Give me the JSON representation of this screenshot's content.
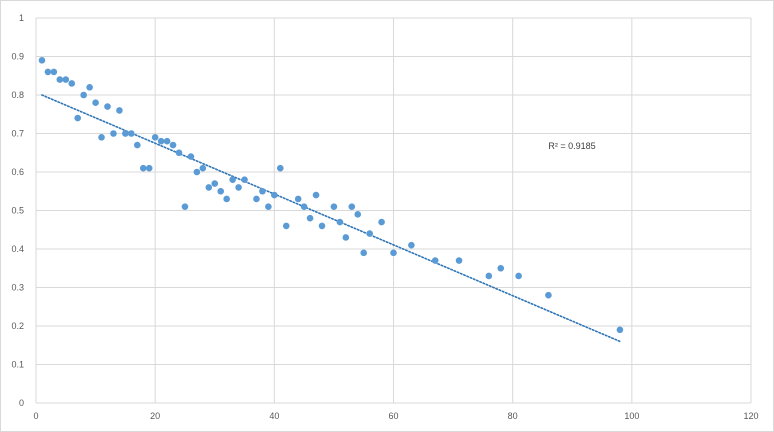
{
  "chart_data": {
    "type": "scatter",
    "title": "",
    "xlabel": "",
    "ylabel": "",
    "xlim": [
      0,
      120
    ],
    "ylim": [
      0,
      1
    ],
    "x_ticks": [
      0,
      20,
      40,
      60,
      80,
      100,
      120
    ],
    "y_ticks": [
      0,
      0.1,
      0.2,
      0.3,
      0.4,
      0.5,
      0.6,
      0.7,
      0.8,
      0.9,
      1
    ],
    "grid": true,
    "legend": "none",
    "series": [
      {
        "color": "#5b9bd5",
        "points": [
          [
            1,
            0.89
          ],
          [
            2,
            0.86
          ],
          [
            3,
            0.86
          ],
          [
            4,
            0.84
          ],
          [
            5,
            0.84
          ],
          [
            6,
            0.83
          ],
          [
            7,
            0.74
          ],
          [
            8,
            0.8
          ],
          [
            9,
            0.82
          ],
          [
            10,
            0.78
          ],
          [
            11,
            0.69
          ],
          [
            12,
            0.77
          ],
          [
            13,
            0.7
          ],
          [
            14,
            0.76
          ],
          [
            15,
            0.7
          ],
          [
            16,
            0.7
          ],
          [
            17,
            0.67
          ],
          [
            18,
            0.61
          ],
          [
            19,
            0.61
          ],
          [
            20,
            0.69
          ],
          [
            21,
            0.68
          ],
          [
            22,
            0.68
          ],
          [
            23,
            0.67
          ],
          [
            24,
            0.65
          ],
          [
            25,
            0.51
          ],
          [
            26,
            0.64
          ],
          [
            27,
            0.6
          ],
          [
            28,
            0.61
          ],
          [
            29,
            0.56
          ],
          [
            30,
            0.57
          ],
          [
            31,
            0.55
          ],
          [
            32,
            0.53
          ],
          [
            33,
            0.58
          ],
          [
            34,
            0.56
          ],
          [
            35,
            0.58
          ],
          [
            37,
            0.53
          ],
          [
            38,
            0.55
          ],
          [
            39,
            0.51
          ],
          [
            40,
            0.54
          ],
          [
            41,
            0.61
          ],
          [
            42,
            0.46
          ],
          [
            44,
            0.53
          ],
          [
            45,
            0.51
          ],
          [
            46,
            0.48
          ],
          [
            47,
            0.54
          ],
          [
            48,
            0.46
          ],
          [
            50,
            0.51
          ],
          [
            51,
            0.47
          ],
          [
            52,
            0.43
          ],
          [
            53,
            0.51
          ],
          [
            54,
            0.49
          ],
          [
            55,
            0.39
          ],
          [
            56,
            0.44
          ],
          [
            58,
            0.47
          ],
          [
            60,
            0.39
          ],
          [
            63,
            0.41
          ],
          [
            67,
            0.37
          ],
          [
            71,
            0.37
          ],
          [
            76,
            0.33
          ],
          [
            78,
            0.35
          ],
          [
            81,
            0.33
          ],
          [
            86,
            0.28
          ],
          [
            98,
            0.19
          ]
        ]
      }
    ],
    "trendline": {
      "type": "linear",
      "style": "dotted",
      "color": "#2e75b6",
      "x_start": 1,
      "x_end": 98,
      "y_start": 0.8,
      "y_end": 0.16
    },
    "annotations": [
      {
        "text": "R² = 0.9185",
        "x": 86,
        "y": 0.66
      }
    ]
  }
}
